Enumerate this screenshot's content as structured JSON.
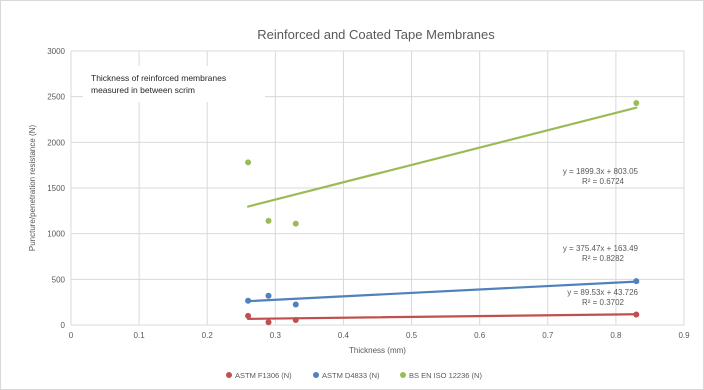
{
  "chart_data": {
    "type": "scatter",
    "title": "Reinforced and Coated Tape Membranes",
    "xlabel": "Thickness (mm)",
    "ylabel": "Puncture/penetration resistance (N)",
    "xlim": [
      0,
      0.9
    ],
    "ylim": [
      0,
      3000
    ],
    "xticks": [
      "0",
      "0.1",
      "0.2",
      "0.3",
      "0.4",
      "0.5",
      "0.6",
      "0.7",
      "0.8",
      "0.9"
    ],
    "yticks": [
      "0",
      "500",
      "1000",
      "1500",
      "2000",
      "2500",
      "3000"
    ],
    "grid": "vertical and horizontal major gridlines",
    "legend_position": "bottom",
    "annotation": [
      "Thickness of reinforced membranes",
      "measured in between scrim"
    ],
    "series": [
      {
        "name": "ASTM F1306 (N)",
        "color": "#c0504d",
        "points": [
          [
            0.26,
            100
          ],
          [
            0.29,
            30
          ],
          [
            0.33,
            55
          ],
          [
            0.83,
            115
          ]
        ],
        "trendline": {
          "slope": 89.53,
          "intercept": 43.726,
          "x_range": [
            0.26,
            0.83
          ],
          "equation": "y = 89.53x + 43.726",
          "r2": "R² = 0.3702"
        }
      },
      {
        "name": "ASTM D4833 (N)",
        "color": "#4f81bd",
        "points": [
          [
            0.26,
            265
          ],
          [
            0.29,
            320
          ],
          [
            0.33,
            225
          ],
          [
            0.83,
            480
          ]
        ],
        "trendline": {
          "slope": 375.47,
          "intercept": 163.49,
          "x_range": [
            0.26,
            0.83
          ],
          "equation": "y = 375.47x + 163.49",
          "r2": "R² = 0.8282"
        }
      },
      {
        "name": "BS EN ISO 12236 (N)",
        "color": "#9bbb59",
        "points": [
          [
            0.26,
            1780
          ],
          [
            0.29,
            1140
          ],
          [
            0.33,
            1110
          ],
          [
            0.83,
            2430
          ]
        ],
        "trendline": {
          "slope": 1899.3,
          "intercept": 803.05,
          "x_range": [
            0.26,
            0.83
          ],
          "equation": "y = 1899.3x + 803.05",
          "r2": "R² = 0.6724"
        }
      }
    ]
  }
}
